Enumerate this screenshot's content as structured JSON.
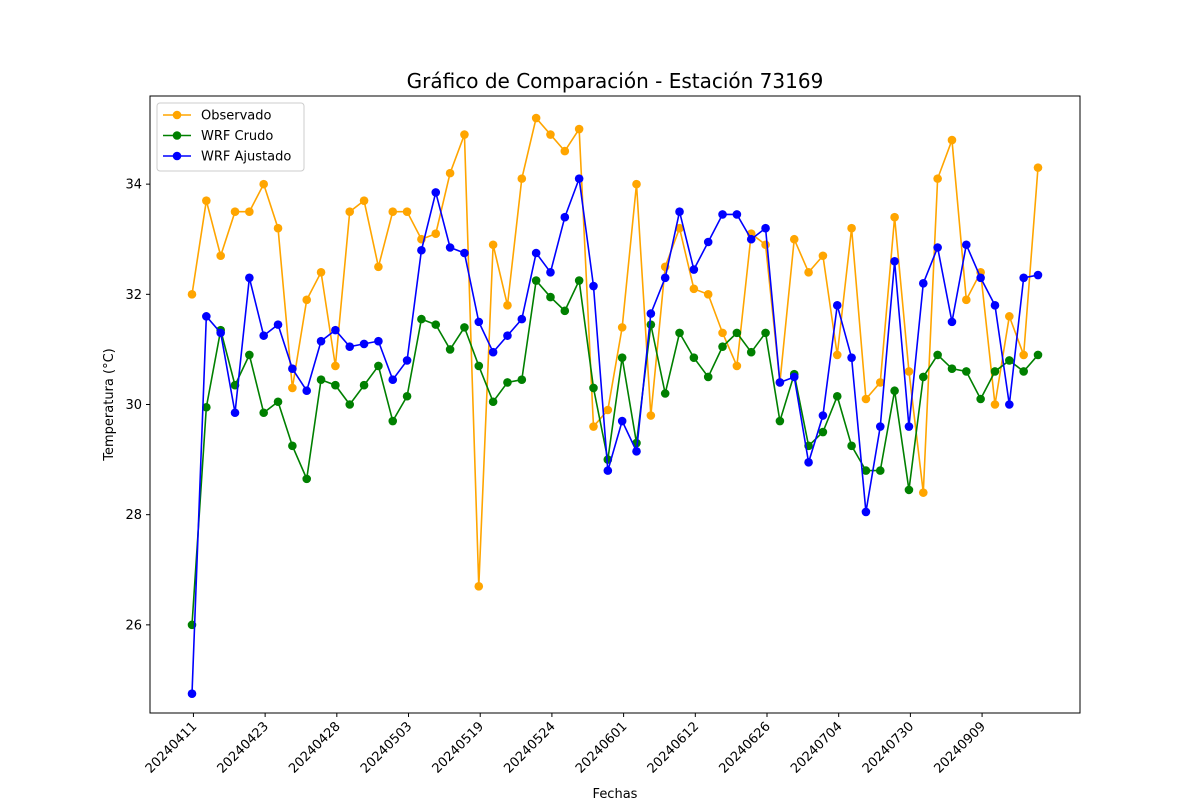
{
  "chart_data": {
    "type": "line",
    "title": "Gráfico de Comparación - Estación 73169",
    "xlabel": "Fechas",
    "ylabel": "Temperatura (°C)",
    "ylim": [
      24.4,
      35.6
    ],
    "yticks": [
      26,
      28,
      30,
      32,
      34
    ],
    "xtick_labels": [
      "20240411",
      "20240423",
      "20240428",
      "20240503",
      "20240519",
      "20240524",
      "20240601",
      "20240612",
      "20240626",
      "20240704",
      "20240730",
      "20240909"
    ],
    "xtick_every": 5,
    "xtick_offset": 0,
    "grid": false,
    "legend_position": "upper-left",
    "series": [
      {
        "name": "Observado",
        "color": "#ffa500",
        "values": [
          32.0,
          33.7,
          32.7,
          33.5,
          33.5,
          34.0,
          33.2,
          30.3,
          31.9,
          32.4,
          30.7,
          33.5,
          33.7,
          32.5,
          33.5,
          33.5,
          33.0,
          33.1,
          34.2,
          34.9,
          26.7,
          32.9,
          31.8,
          34.1,
          35.2,
          34.9,
          34.6,
          35.0,
          29.6,
          29.9,
          31.4,
          34.0,
          29.8,
          32.5,
          33.2,
          32.1,
          32.0,
          31.3,
          30.7,
          33.1,
          32.9,
          30.4,
          33.0,
          32.4,
          32.7,
          30.9,
          33.2,
          30.1,
          30.4,
          33.4,
          30.6,
          28.4,
          34.1,
          34.8,
          31.9,
          32.4,
          30.0,
          31.6,
          30.9,
          34.3
        ]
      },
      {
        "name": "WRF Crudo",
        "color": "#008000",
        "values": [
          26.0,
          29.95,
          31.35,
          30.35,
          30.9,
          29.85,
          30.05,
          29.25,
          28.65,
          30.45,
          30.35,
          30.0,
          30.35,
          30.7,
          29.7,
          30.15,
          31.55,
          31.45,
          31.0,
          31.4,
          30.7,
          30.05,
          30.4,
          30.45,
          32.25,
          31.95,
          31.7,
          32.25,
          30.3,
          29.0,
          30.85,
          29.3,
          31.45,
          30.2,
          31.3,
          30.85,
          30.5,
          31.05,
          31.3,
          30.95,
          31.3,
          29.7,
          30.55,
          29.25,
          29.5,
          30.15,
          29.25,
          28.8,
          28.8,
          30.25,
          28.45,
          30.5,
          30.9,
          30.65,
          30.6,
          30.1,
          30.6,
          30.8,
          30.6,
          30.9
        ]
      },
      {
        "name": "WRF Ajustado",
        "color": "#0000ff",
        "values": [
          24.75,
          31.6,
          31.3,
          29.85,
          32.3,
          31.25,
          31.45,
          30.65,
          30.25,
          31.15,
          31.35,
          31.05,
          31.1,
          31.15,
          30.45,
          30.8,
          32.8,
          33.85,
          32.85,
          32.75,
          31.5,
          30.95,
          31.25,
          31.55,
          32.75,
          32.4,
          33.4,
          34.1,
          32.15,
          28.8,
          29.7,
          29.15,
          31.65,
          32.3,
          33.5,
          32.45,
          32.95,
          33.45,
          33.45,
          33.0,
          33.2,
          30.4,
          30.5,
          28.95,
          29.8,
          31.8,
          30.85,
          28.05,
          29.6,
          32.6,
          29.6,
          32.2,
          32.85,
          31.5,
          32.9,
          32.3,
          31.8,
          30.0,
          32.3,
          32.35
        ]
      }
    ]
  }
}
